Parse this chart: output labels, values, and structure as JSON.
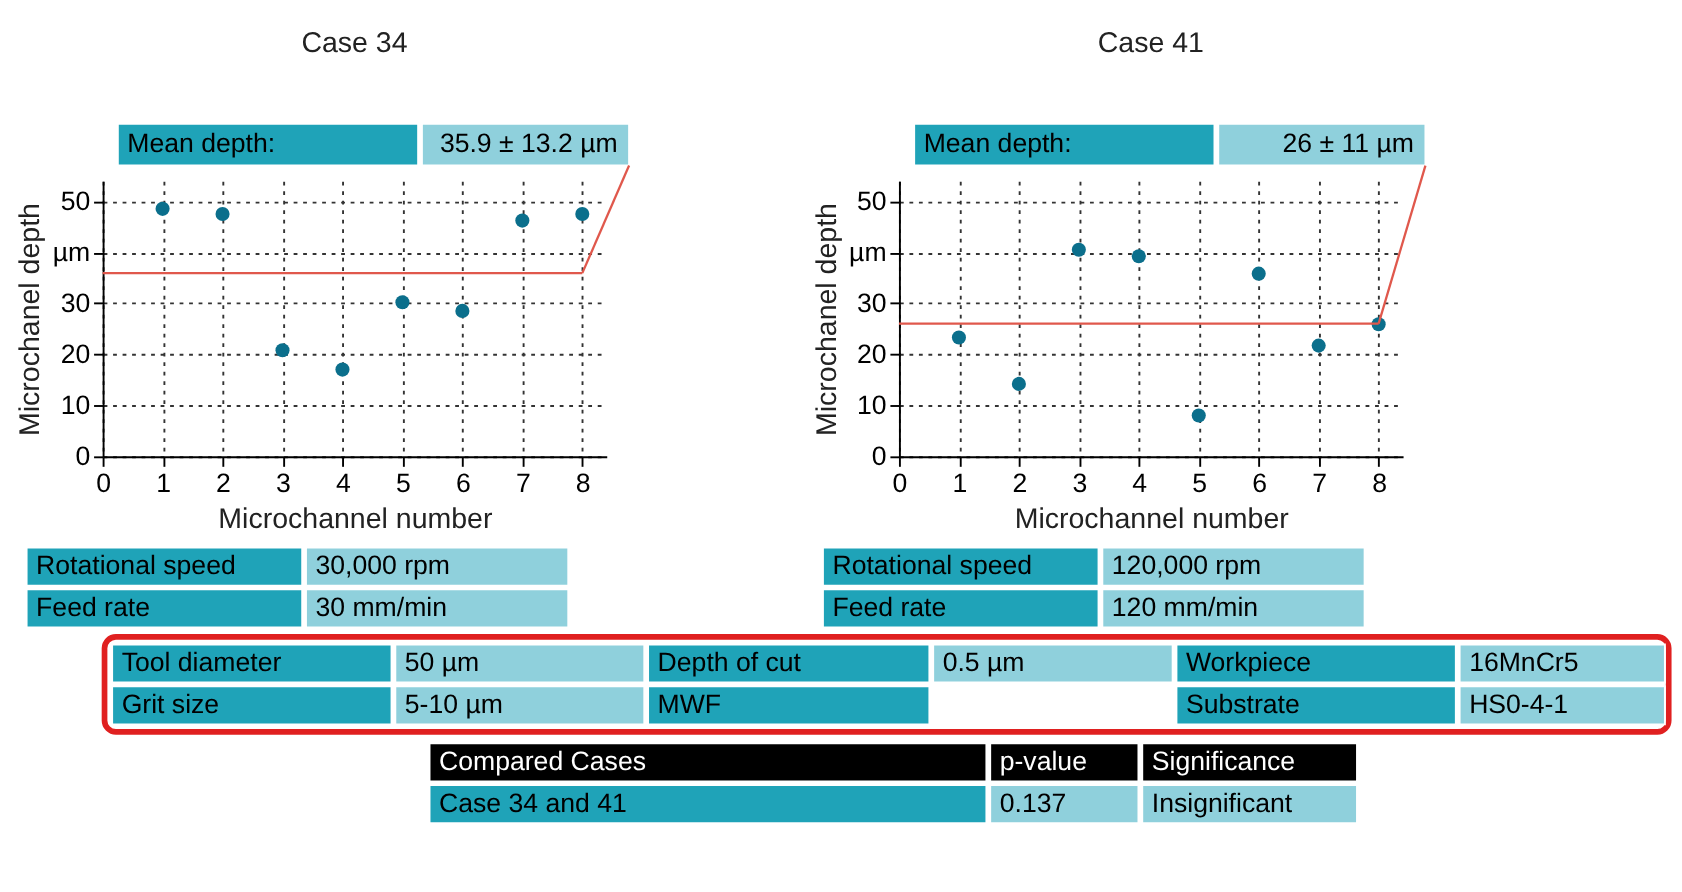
{
  "chart_data": [
    {
      "type": "scatter",
      "title": "Case 34",
      "xlabel": "Microchannel number",
      "ylabel": "Microchanel depth",
      "x": [
        1,
        2,
        3,
        4,
        5,
        6,
        7,
        8
      ],
      "series": [
        {
          "color": "#0b6f8c",
          "values": [
            48.5,
            47.5,
            20.8,
            17,
            30.2,
            28.5,
            46.2,
            47.5
          ]
        }
      ],
      "xlim": [
        0,
        8.4
      ],
      "xticks": [
        0,
        1,
        2,
        3,
        4,
        5,
        6,
        7,
        8
      ],
      "ylim": [
        0,
        54
      ],
      "yticks": [
        0,
        10,
        20,
        30,
        {
          "value": 40,
          "label": "µm"
        },
        50
      ],
      "grid": true,
      "marker": "circle",
      "ref_lines": [
        {
          "axis": "y",
          "value": 35.9,
          "color": "#e0584c"
        }
      ],
      "annotations": [
        "Mean depth:",
        {
          "text": "35.9 ± 13.2 µm",
          "x": 8,
          "y": 35.9
        },
        "Rotational speed",
        "30,000 rpm",
        "Feed rate",
        "30 mm/min"
      ]
    },
    {
      "type": "scatter",
      "title": "Case 41",
      "xlabel": "Microchannel number",
      "ylabel": "Microchanel depth",
      "x": [
        1,
        2,
        3,
        4,
        5,
        6,
        7,
        8
      ],
      "series": [
        {
          "color": "#0b6f8c",
          "values": [
            23.3,
            14.2,
            40.5,
            39.2,
            8,
            35.8,
            21.7,
            25.9
          ]
        }
      ],
      "xlim": [
        0,
        8.4
      ],
      "xticks": [
        0,
        1,
        2,
        3,
        4,
        5,
        6,
        7,
        8
      ],
      "ylim": [
        0,
        54
      ],
      "yticks": [
        0,
        10,
        20,
        30,
        {
          "value": 40,
          "label": "µm"
        },
        50
      ],
      "grid": true,
      "marker": "circle",
      "ref_lines": [
        {
          "axis": "y",
          "value": 26,
          "color": "#e0584c"
        }
      ],
      "annotations": [
        "Mean depth:",
        {
          "text": "26 ± 11 µm",
          "x": 8,
          "y": 26
        },
        "Rotational speed",
        "120,000 rpm",
        "Feed rate",
        "120 mm/min"
      ]
    },
    {
      "type": "other",
      "annotations": [
        "Tool diameter",
        "50 µm",
        "Depth of cut",
        "0.5 µm",
        "Workpiece",
        "16MnCr5",
        "Grit size",
        "5-10 µm",
        "MWF",
        "Substrate",
        "HS0-4-1",
        "Compared Cases",
        "p-value",
        "Significance",
        "Case 34 and 41",
        "0.137",
        "Insignificant"
      ]
    }
  ]
}
